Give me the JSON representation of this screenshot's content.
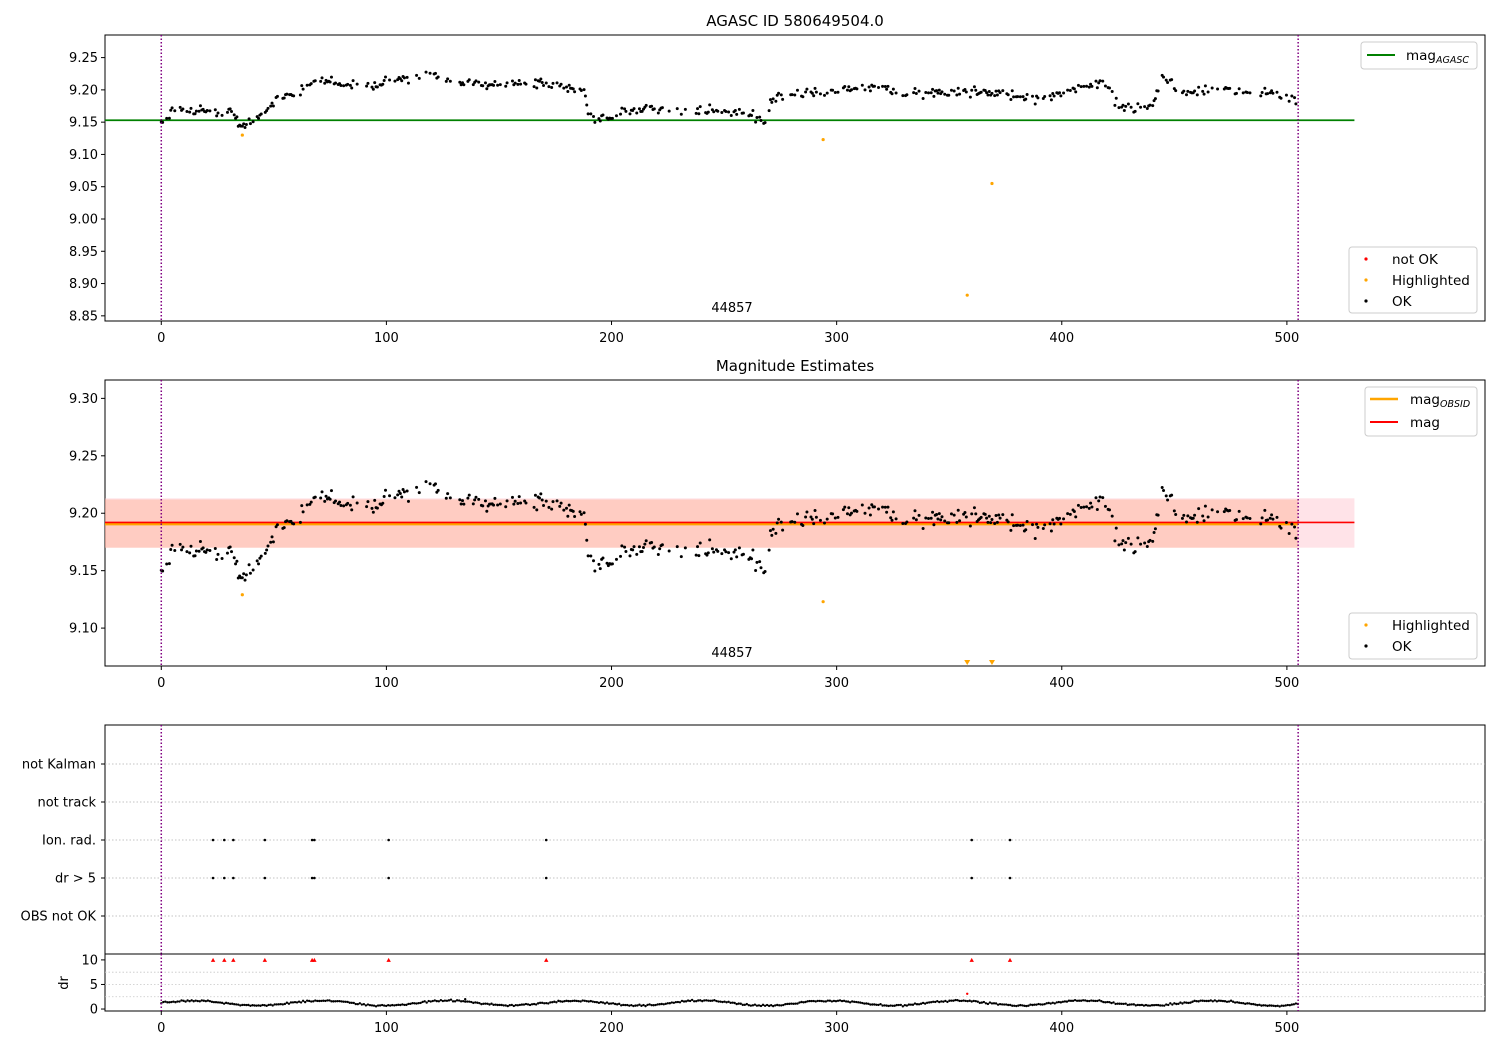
{
  "figure": {
    "width": 1500,
    "height": 1050
  },
  "colors": {
    "ok": "#000000",
    "highlighted": "#FFA500",
    "not_ok": "#FF0000",
    "agasc_line": "#008000",
    "obsid_line": "#FFA500",
    "mag_line": "#FF0000",
    "band_pink": "#FFC0CB",
    "band_orange": "#FFA07A",
    "marker_line": "#800080"
  },
  "chart_data": [
    {
      "id": "panel1",
      "type": "scatter",
      "title": "AGASC ID 580649504.0",
      "xlim": [
        -25,
        588
      ],
      "ylim": [
        8.842,
        9.285
      ],
      "xticks": [
        0,
        100,
        200,
        300,
        400,
        500
      ],
      "yticks": [
        8.85,
        8.9,
        8.95,
        9.0,
        9.05,
        9.1,
        9.15,
        9.2,
        9.25
      ],
      "ytick_labels": [
        "8.85",
        "8.90",
        "8.95",
        "9.00",
        "9.05",
        "9.10",
        "9.15",
        "9.20",
        "9.25"
      ],
      "vlines": [
        0,
        505
      ],
      "hlines": [
        {
          "name": "mag_AGASC",
          "y": 9.153,
          "x_range": [
            -25,
            530
          ]
        }
      ],
      "annotation": {
        "text": "44857",
        "x": 252
      },
      "highlighted_points": [
        [
          36,
          9.13
        ],
        [
          294,
          9.123
        ],
        [
          369,
          9.055
        ],
        [
          358,
          8.882
        ]
      ],
      "legend_top": [
        {
          "label_main": "mag",
          "label_sub": "AGASC",
          "kind": "line"
        }
      ],
      "legend_bottom": [
        {
          "label": "not OK",
          "kind": "not_ok"
        },
        {
          "label": "Highlighted",
          "kind": "highlighted"
        },
        {
          "label": "OK",
          "kind": "ok"
        }
      ],
      "legend_placement": "top-right and bottom-right"
    },
    {
      "id": "panel2",
      "type": "scatter",
      "title": "Magnitude Estimates",
      "xlim": [
        -25,
        588
      ],
      "ylim": [
        9.067,
        9.316
      ],
      "xticks": [
        0,
        100,
        200,
        300,
        400,
        500
      ],
      "yticks": [
        9.1,
        9.15,
        9.2,
        9.25,
        9.3
      ],
      "ytick_labels": [
        "9.10",
        "9.15",
        "9.20",
        "9.25",
        "9.30"
      ],
      "vlines": [
        0,
        505
      ],
      "hlines": [
        {
          "name": "mag_OBSID",
          "y": 9.1905,
          "x_range": [
            -25,
            530
          ]
        },
        {
          "name": "mag",
          "y": 9.192,
          "x_range": [
            -25,
            530
          ]
        }
      ],
      "bands": [
        {
          "name": "pink",
          "y": [
            9.17,
            9.213
          ],
          "x_range": [
            -25,
            530
          ]
        },
        {
          "name": "orange",
          "y": [
            9.17,
            9.212
          ],
          "x_range": [
            -25,
            505
          ]
        }
      ],
      "annotation": {
        "text": "44857",
        "x": 252
      },
      "highlighted_points": [
        [
          36,
          9.129
        ],
        [
          294,
          9.123
        ]
      ],
      "offscale_markers": [
        358,
        369
      ],
      "legend_top": [
        {
          "label_main": "mag",
          "label_sub": "OBSID",
          "kind": "obsid"
        },
        {
          "label_main": "mag",
          "label_sub": "",
          "kind": "mag"
        }
      ],
      "legend_bottom": [
        {
          "label": "Highlighted",
          "kind": "highlighted"
        },
        {
          "label": "OK",
          "kind": "ok"
        }
      ],
      "legend_placement": "top-right and bottom-right"
    },
    {
      "id": "panel3",
      "type": "scatter",
      "title": "",
      "categories": [
        "not Kalman",
        "not track",
        "Ion. rad.",
        "dr > 5",
        "OBS not OK"
      ],
      "xlim": [
        -25,
        588
      ],
      "vlines": [
        0,
        505
      ],
      "flag_points": {
        "Ion. rad.": [
          23,
          28,
          32,
          46,
          67,
          68,
          101,
          171,
          360,
          377
        ],
        "dr > 5": [
          23,
          28,
          32,
          46,
          67,
          68,
          101,
          171,
          360,
          377
        ]
      }
    },
    {
      "id": "panel4",
      "type": "scatter",
      "title": "",
      "ylabel": "dr",
      "xlim": [
        -25,
        588
      ],
      "ylim": [
        -0.4,
        11.2
      ],
      "xticks": [
        0,
        100,
        200,
        300,
        400,
        500
      ],
      "yticks": [
        0,
        5,
        10
      ],
      "ytick_labels": [
        "0",
        "5",
        "10"
      ],
      "vlines": [
        0,
        505
      ],
      "clipped_points": [
        23,
        28,
        32,
        46,
        67,
        68,
        101,
        171,
        360,
        377
      ],
      "outlier_points": [
        [
          135,
          2.0
        ],
        [
          358,
          3.1
        ]
      ]
    }
  ]
}
